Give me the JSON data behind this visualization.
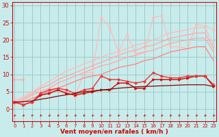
{
  "xlabel": "Vent moyen/en rafales ( km/h )",
  "background_color": "#c8ecec",
  "grid_color": "#a0c8c8",
  "x_values": [
    0,
    1,
    2,
    3,
    4,
    5,
    6,
    7,
    8,
    9,
    10,
    11,
    12,
    13,
    14,
    15,
    16,
    17,
    18,
    19,
    20,
    21,
    22,
    23
  ],
  "series": [
    {
      "name": "light_flat_start",
      "color": "#ffaaaa",
      "lw": 0.9,
      "marker": ">",
      "markersize": 2.5,
      "y": [
        8.5,
        8.5,
        null,
        null,
        null,
        null,
        null,
        null,
        null,
        null,
        null,
        null,
        null,
        null,
        null,
        null,
        null,
        null,
        null,
        null,
        null,
        null,
        null,
        null
      ]
    },
    {
      "name": "rafales_light",
      "color": "#ffbbbb",
      "lw": 0.9,
      "marker": "D",
      "markersize": 2,
      "y": [
        2.0,
        1.2,
        2.0,
        4.5,
        5.5,
        5.5,
        5.0,
        3.5,
        10.5,
        10.5,
        26.5,
        23.5,
        16.5,
        21.5,
        16.0,
        16.5,
        26.5,
        27.0,
        18.0,
        18.0,
        17.5,
        24.5,
        24.0,
        23.0
      ]
    },
    {
      "name": "trend_top",
      "color": "#ffbbbb",
      "lw": 1.0,
      "marker": null,
      "y": [
        2.5,
        3.5,
        5.0,
        6.5,
        8.0,
        9.5,
        11.0,
        12.0,
        13.0,
        14.0,
        15.0,
        16.0,
        16.5,
        17.5,
        18.5,
        19.0,
        20.0,
        21.0,
        22.0,
        22.5,
        23.0,
        23.5,
        23.5,
        18.5
      ]
    },
    {
      "name": "trend_mid",
      "color": "#ffaaaa",
      "lw": 1.0,
      "marker": null,
      "y": [
        2.0,
        3.0,
        4.5,
        6.0,
        7.0,
        8.5,
        9.5,
        10.5,
        11.5,
        12.5,
        13.5,
        14.5,
        15.5,
        16.5,
        17.0,
        18.0,
        18.5,
        19.5,
        20.5,
        21.0,
        21.5,
        22.0,
        22.0,
        17.5
      ]
    },
    {
      "name": "trend_lower_pink",
      "color": "#ffaaaa",
      "lw": 1.0,
      "marker": null,
      "y": [
        1.5,
        2.5,
        4.0,
        5.0,
        6.0,
        7.5,
        8.5,
        9.5,
        10.5,
        11.5,
        12.5,
        13.0,
        14.0,
        15.0,
        15.5,
        16.5,
        17.0,
        18.0,
        19.0,
        19.5,
        20.0,
        20.5,
        20.5,
        16.5
      ]
    },
    {
      "name": "trend_lowest",
      "color": "#ff8888",
      "lw": 1.0,
      "marker": null,
      "y": [
        1.5,
        2.0,
        3.0,
        4.0,
        5.0,
        6.0,
        7.0,
        8.0,
        9.0,
        9.5,
        10.0,
        11.0,
        12.0,
        12.5,
        13.0,
        14.0,
        14.5,
        15.5,
        16.5,
        17.0,
        17.5,
        18.0,
        18.0,
        14.0
      ]
    },
    {
      "name": "moyen_dark",
      "color": "#cc0000",
      "lw": 1.0,
      "marker": ">",
      "markersize": 2.5,
      "y": [
        2.0,
        1.2,
        2.0,
        4.0,
        4.5,
        5.5,
        4.5,
        4.0,
        4.5,
        5.0,
        5.5,
        5.5,
        7.5,
        7.5,
        6.0,
        6.0,
        8.5,
        8.5,
        8.5,
        8.5,
        9.0,
        9.5,
        9.5,
        6.5
      ]
    },
    {
      "name": "rafales_dark",
      "color": "#ee3333",
      "lw": 1.0,
      "marker": "D",
      "markersize": 2,
      "y": [
        2.0,
        1.2,
        2.0,
        4.5,
        5.5,
        6.0,
        5.5,
        4.5,
        5.5,
        6.0,
        9.5,
        8.5,
        8.5,
        8.0,
        7.5,
        8.0,
        10.5,
        9.5,
        9.0,
        9.0,
        9.5,
        9.5,
        9.5,
        7.0
      ]
    },
    {
      "name": "flat_trend",
      "color": "#880000",
      "lw": 0.9,
      "marker": null,
      "y": [
        2.0,
        2.1,
        2.3,
        2.8,
        3.2,
        3.7,
        4.1,
        4.5,
        5.0,
        5.2,
        5.5,
        5.7,
        6.0,
        6.2,
        6.4,
        6.5,
        6.6,
        6.7,
        6.8,
        6.9,
        7.0,
        7.0,
        7.0,
        6.5
      ]
    }
  ],
  "xlim": [
    -0.3,
    23.3
  ],
  "ylim": [
    -3.5,
    31
  ],
  "yticks": [
    0,
    5,
    10,
    15,
    20,
    25,
    30
  ],
  "xticks": [
    0,
    1,
    2,
    3,
    4,
    5,
    6,
    7,
    8,
    9,
    10,
    11,
    12,
    13,
    14,
    15,
    16,
    17,
    18,
    19,
    20,
    21,
    22,
    23
  ],
  "tick_color": "#cc0000",
  "label_color": "#cc0000",
  "xlabel_fontsize": 6.5,
  "tick_fontsize_x": 5,
  "tick_fontsize_y": 6
}
